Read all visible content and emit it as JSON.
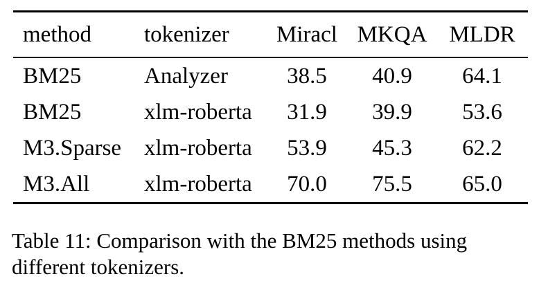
{
  "table": {
    "columns": [
      "method",
      "tokenizer",
      "Miracl",
      "MKQA",
      "MLDR"
    ],
    "rows": [
      {
        "method": "BM25",
        "tokenizer": "Analyzer",
        "miracl": "38.5",
        "mkqa": "40.9",
        "mldr": "64.1"
      },
      {
        "method": "BM25",
        "tokenizer": "xlm-roberta",
        "miracl": "31.9",
        "mkqa": "39.9",
        "mldr": "53.6"
      },
      {
        "method": "M3.Sparse",
        "tokenizer": "xlm-roberta",
        "miracl": "53.9",
        "mkqa": "45.3",
        "mldr": "62.2"
      },
      {
        "method": "M3.All",
        "tokenizer": "xlm-roberta",
        "miracl": "70.0",
        "mkqa": "75.5",
        "mldr": "65.0"
      }
    ]
  },
  "caption": {
    "line1": "Table 11: Comparison with the BM25 methods using",
    "line2": "different tokenizers."
  },
  "colors": {
    "text": "#000000",
    "background": "#ffffff"
  }
}
